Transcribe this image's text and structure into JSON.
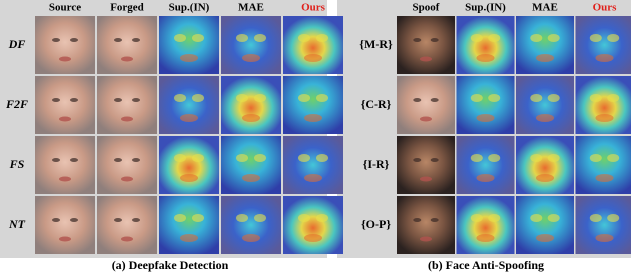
{
  "panels": [
    {
      "columns": [
        "Source",
        "Forged",
        "Sup.(IN)",
        "MAE",
        "Ours"
      ],
      "rows": [
        "DF",
        "F2F",
        "FS",
        "NT"
      ],
      "caption": "(a) Deepfake Detection"
    },
    {
      "columns": [
        "Spoof",
        "Sup.(IN)",
        "MAE",
        "Ours"
      ],
      "rows": [
        "{M-R}",
        "{C-R}",
        "{I-R}",
        "{O-P}"
      ],
      "caption": "(b) Face Anti-Spoofing"
    }
  ]
}
